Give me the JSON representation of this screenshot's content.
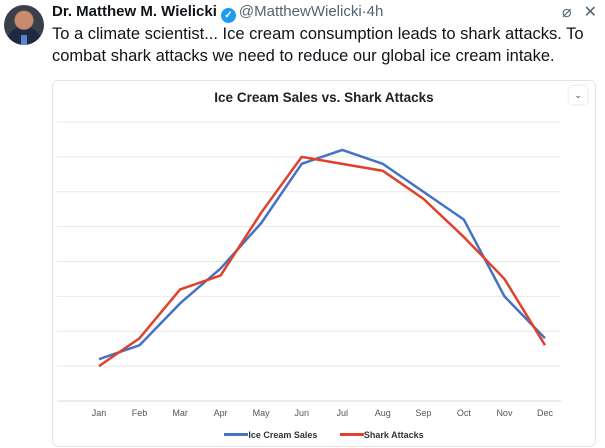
{
  "tweet": {
    "author_name": "Dr. Matthew M. Wielicki",
    "verified_icon": "verified-badge-icon",
    "handle": "@MatthewWielicki",
    "separator": "·",
    "time": "4h",
    "text": "To a climate scientist... Ice cream consumption leads to shark attacks. To combat shark attacks we need to reduce our global ice cream intake.",
    "icons": [
      "grok-slash-icon",
      "close-icon"
    ]
  },
  "card": {
    "expand_icon": "chevron-down-icon"
  },
  "chart_data": {
    "type": "line",
    "title": "Ice Cream Sales vs. Shark Attacks",
    "xlabel": "",
    "ylabel": "",
    "categories": [
      "Jan",
      "Feb",
      "Mar",
      "Apr",
      "May",
      "Jun",
      "Jul",
      "Aug",
      "Sep",
      "Oct",
      "Nov",
      "Dec"
    ],
    "series": [
      {
        "name": "Ice Cream Sales",
        "color": "#4472c4",
        "values": [
          1.2,
          1.6,
          2.8,
          3.8,
          5.1,
          6.8,
          7.2,
          6.8,
          6.0,
          5.2,
          3.0,
          1.8
        ]
      },
      {
        "name": "Shark Attacks",
        "color": "#e0412c",
        "values": [
          1.0,
          1.8,
          3.2,
          3.6,
          5.4,
          7.0,
          6.8,
          6.6,
          5.8,
          4.7,
          3.5,
          1.6
        ]
      }
    ],
    "ylim": [
      0,
      8
    ],
    "y_tick_labels_visible": false,
    "grid": true,
    "legend": "bottom"
  }
}
